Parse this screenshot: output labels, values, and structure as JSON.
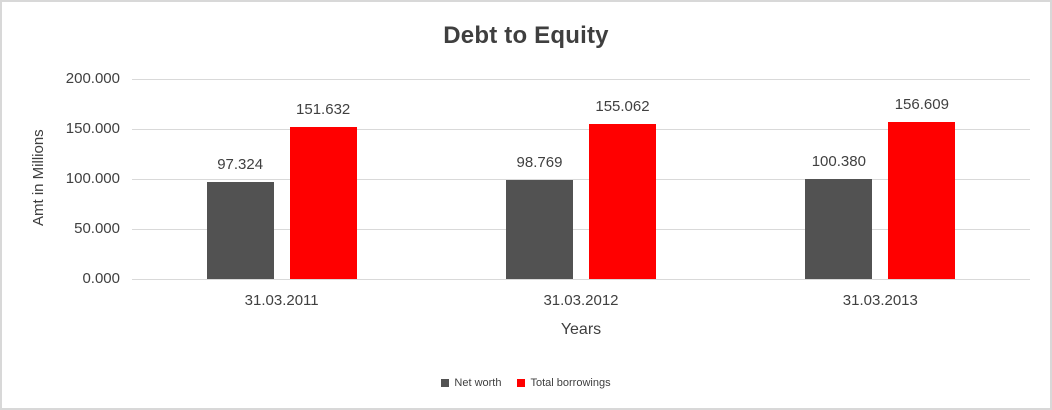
{
  "chart_data": {
    "type": "bar",
    "title": "Debt to Equity",
    "xlabel": "Years",
    "ylabel": "Amt in Millions",
    "categories": [
      "31.03.2011",
      "31.03.2012",
      "31.03.2013"
    ],
    "series": [
      {
        "name": "Net worth",
        "color": "#525252",
        "values": [
          97.324,
          98.769,
          100.38
        ],
        "labels": [
          "97.324",
          "98.769",
          "100.380"
        ]
      },
      {
        "name": "Total borrowings",
        "color": "#ff0000",
        "values": [
          151.632,
          155.062,
          156.609
        ],
        "labels": [
          "151.632",
          "155.062",
          "156.609"
        ]
      }
    ],
    "ylim": [
      0,
      200
    ],
    "ytick_step": 50,
    "ytick_labels": [
      "0.000",
      "50.000",
      "100.000",
      "150.000",
      "200.000"
    ],
    "grid": true,
    "legend_position": "bottom"
  },
  "colors": {
    "text": "#404040",
    "title_text": "#3f3f3f",
    "gridline": "#d9d9d9",
    "frame_border": "#d8d8d8",
    "background": "#ffffff"
  }
}
